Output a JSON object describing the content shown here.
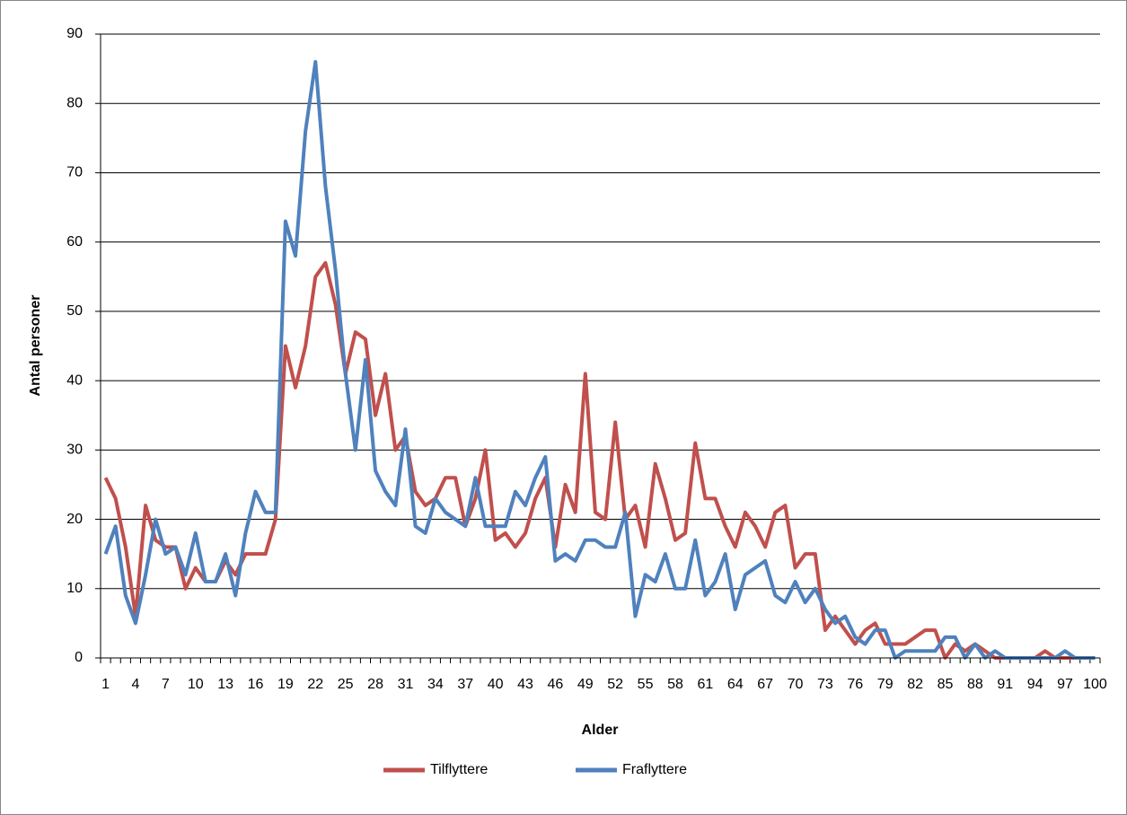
{
  "chart_data": {
    "type": "line",
    "x_label": "Alder",
    "y_label": "Antal personer",
    "categories": [
      1,
      null,
      null,
      4,
      null,
      null,
      7,
      null,
      null,
      10,
      null,
      null,
      13,
      null,
      null,
      16,
      null,
      null,
      19,
      null,
      null,
      22,
      null,
      null,
      25,
      null,
      null,
      28,
      null,
      null,
      31,
      null,
      null,
      34,
      null,
      null,
      37,
      null,
      null,
      40,
      null,
      null,
      43,
      null,
      null,
      46,
      null,
      null,
      49,
      null,
      null,
      52,
      null,
      null,
      55,
      null,
      null,
      58,
      null,
      null,
      61,
      null,
      null,
      64,
      null,
      null,
      67,
      null,
      null,
      70,
      null,
      null,
      73,
      null,
      null,
      76,
      null,
      null,
      79,
      null,
      null,
      82,
      null,
      null,
      85,
      null,
      null,
      88,
      null,
      null,
      91,
      null,
      null,
      94,
      null,
      null,
      97,
      null,
      null,
      100
    ],
    "series": [
      {
        "name": "Tilflyttere",
        "color": "#c0504d",
        "values": [
          26,
          23,
          16,
          6,
          22,
          17,
          16,
          16,
          10,
          13,
          11,
          11,
          14,
          12,
          15,
          15,
          15,
          20,
          45,
          39,
          45,
          55,
          57,
          51,
          41,
          47,
          46,
          35,
          41,
          30,
          32,
          24,
          22,
          23,
          26,
          26,
          19,
          23,
          30,
          17,
          18,
          16,
          18,
          23,
          26,
          16,
          25,
          21,
          41,
          21,
          20,
          34,
          20,
          22,
          16,
          28,
          23,
          17,
          18,
          31,
          23,
          23,
          19,
          16,
          21,
          19,
          16,
          21,
          22,
          13,
          15,
          15,
          4,
          6,
          4,
          2,
          4,
          5,
          2,
          2,
          2,
          3,
          4,
          4,
          0,
          2,
          1,
          2,
          1,
          0,
          0,
          0,
          0,
          0,
          1,
          0,
          0,
          0,
          0,
          0
        ]
      },
      {
        "name": "Fraflyttere",
        "color": "#4f81bd",
        "values": [
          15,
          19,
          9,
          5,
          12,
          20,
          15,
          16,
          12,
          18,
          11,
          11,
          15,
          9,
          18,
          24,
          21,
          21,
          63,
          58,
          76,
          86,
          68,
          56,
          41,
          30,
          43,
          27,
          24,
          22,
          33,
          19,
          18,
          23,
          21,
          20,
          19,
          26,
          19,
          19,
          19,
          24,
          22,
          26,
          29,
          14,
          15,
          14,
          17,
          17,
          16,
          16,
          21,
          6,
          12,
          11,
          15,
          10,
          10,
          17,
          9,
          11,
          15,
          7,
          12,
          13,
          14,
          9,
          8,
          11,
          8,
          10,
          7,
          5,
          6,
          3,
          2,
          4,
          4,
          0,
          1,
          1,
          1,
          1,
          3,
          3,
          0,
          2,
          0,
          1,
          0,
          0,
          0,
          0,
          0,
          0,
          1,
          0,
          0,
          0
        ]
      }
    ],
    "ylim": [
      0,
      90
    ],
    "yticks": [
      0,
      10,
      20,
      30,
      40,
      50,
      60,
      70,
      80,
      90
    ],
    "grid": true,
    "legend": "bottom"
  }
}
